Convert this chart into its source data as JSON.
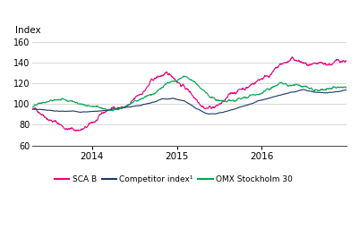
{
  "title": "Index",
  "ylim": [
    60,
    168
  ],
  "yticks": [
    60,
    80,
    100,
    120,
    140,
    160
  ],
  "xtick_labels": [
    "2014",
    "2015",
    "2016"
  ],
  "colors": {
    "sca": "#e8007d",
    "competitor": "#1a3a6b",
    "omx": "#00a550"
  },
  "legend": {
    "sca_label": "SCA B",
    "comp_label": "Competitor index¹",
    "omx_label": "OMX Stockholm 30"
  },
  "background": "#ffffff",
  "linewidth": 0.8,
  "n_points": 1000
}
